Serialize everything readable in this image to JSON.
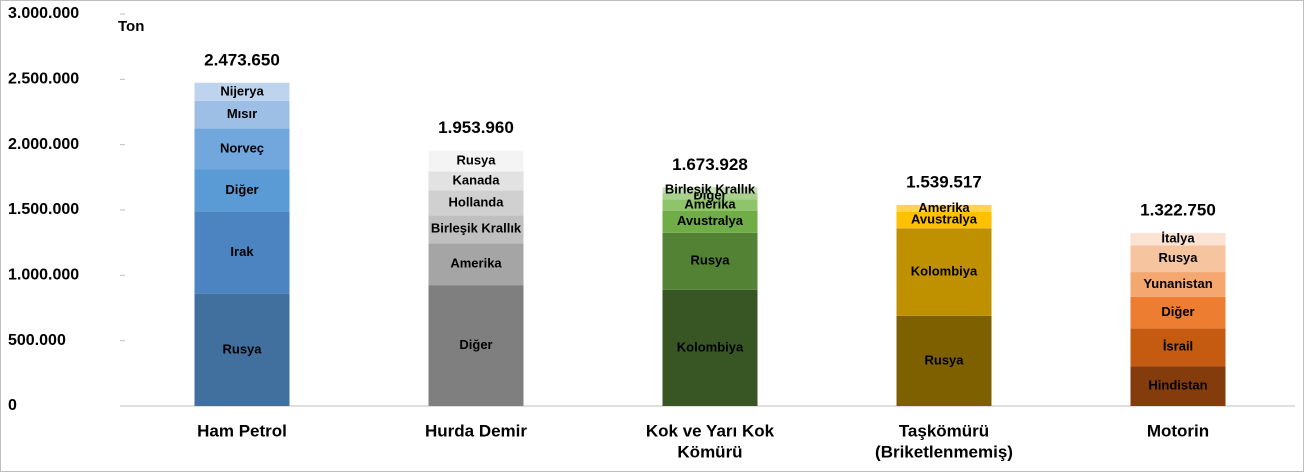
{
  "chart_data": {
    "type": "stacked_bar",
    "y_axis_label": "Ton",
    "ylim": [
      0,
      3000000
    ],
    "yticks": [
      0,
      {
        "value": 500000,
        "label": "500.000"
      },
      {
        "value": 1000000,
        "label": "1.000.000"
      },
      {
        "value": 1500000,
        "label": "1.500.000"
      },
      {
        "value": 2000000,
        "label": "2.000.000"
      },
      {
        "value": 2500000,
        "label": "2.500.000"
      },
      {
        "value": 3000000,
        "label": "3.000.000"
      }
    ],
    "categories": [
      [
        "Ham Petrol"
      ],
      [
        "Hurda Demir"
      ],
      [
        "Kok ve Yarı Kok",
        "Kömürü"
      ],
      [
        "Taşkömürü",
        "(Briketlenmemiş)"
      ],
      [
        "Motorin"
      ]
    ],
    "stacks": [
      {
        "total": 2473650,
        "total_label": "2.473.650",
        "segments": [
          {
            "name": "Rusya",
            "value": 860000,
            "color": "#41709f"
          },
          {
            "name": "Irak",
            "value": 630000,
            "color": "#4b84c0"
          },
          {
            "name": "Diğer",
            "value": 320000,
            "color": "#5b9bd5"
          },
          {
            "name": "Norveç",
            "value": 315000,
            "color": "#72a7de"
          },
          {
            "name": "Mısır",
            "value": 210000,
            "color": "#9dbfe5"
          },
          {
            "name": "Nijerya",
            "value": 138650,
            "color": "#bdd3ee"
          }
        ]
      },
      {
        "total": 1953960,
        "total_label": "1.953.960",
        "segments": [
          {
            "name": "Diğer",
            "value": 925000,
            "color": "#7f7f7f"
          },
          {
            "name": "Amerika",
            "value": 320000,
            "color": "#a5a5a5"
          },
          {
            "name": "Birleşik Krallık",
            "value": 215000,
            "color": "#bfbfbf"
          },
          {
            "name": "Hollanda",
            "value": 190000,
            "color": "#d0d0d0"
          },
          {
            "name": "Kanada",
            "value": 145000,
            "color": "#e2e2e2"
          },
          {
            "name": "Rusya",
            "value": 158960,
            "color": "#f4f4f4"
          }
        ]
      },
      {
        "total": 1673928,
        "total_label": "1.673.928",
        "segments": [
          {
            "name": "Kolombiya",
            "value": 890000,
            "color": "#375623"
          },
          {
            "name": "Rusya",
            "value": 435000,
            "color": "#548235"
          },
          {
            "name": "Avustralya",
            "value": 170000,
            "color": "#70ad47"
          },
          {
            "name": "Amerika",
            "value": 85000,
            "color": "#8fc46b"
          },
          {
            "name": "Diğer",
            "value": 50000,
            "color": "#a9d18e"
          },
          {
            "name": "Birleşik Krallık",
            "value": 43928,
            "color": "#c5e0b4"
          }
        ]
      },
      {
        "total": 1539517,
        "total_label": "1.539.517",
        "segments": [
          {
            "name": "Rusya",
            "value": 690000,
            "color": "#7f6000"
          },
          {
            "name": "Kolombiya",
            "value": 670000,
            "color": "#bf9000"
          },
          {
            "name": "Avustralya",
            "value": 125000,
            "color": "#ffc000"
          },
          {
            "name": "Amerika",
            "value": 54517,
            "color": "#ffd34d"
          }
        ]
      },
      {
        "total": 1322750,
        "total_label": "1.322.750",
        "segments": [
          {
            "name": "Hindistan",
            "value": 305000,
            "color": "#843c0c"
          },
          {
            "name": "İsrail",
            "value": 290000,
            "color": "#c55a11"
          },
          {
            "name": "Diğer",
            "value": 240000,
            "color": "#ed7d31"
          },
          {
            "name": "Yunanistan",
            "value": 190000,
            "color": "#f4a76f"
          },
          {
            "name": "Rusya",
            "value": 205000,
            "color": "#f7c4a0"
          },
          {
            "name": "İtalya",
            "value": 92750,
            "color": "#fbe2d2"
          }
        ]
      }
    ]
  }
}
